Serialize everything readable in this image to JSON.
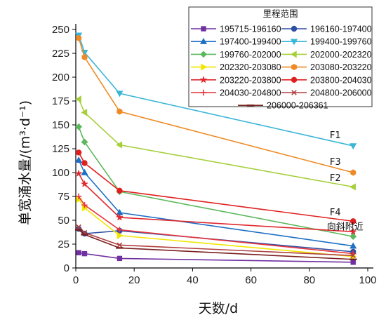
{
  "chart_data": {
    "type": "line",
    "xlabel": "天数/d",
    "ylabel": "单宽涌水量/(m³·d⁻¹)",
    "xlim": [
      0,
      100
    ],
    "ylim": [
      0,
      250
    ],
    "xticks": [
      "0",
      "20",
      "40",
      "60",
      "80",
      "100"
    ],
    "yticks": [
      "0",
      "25",
      "50",
      "75",
      "100",
      "125",
      "150",
      "175",
      "200",
      "225",
      "250"
    ],
    "grid": false,
    "legend_title": "里程范围",
    "legend_position": "top-right",
    "series": [
      {
        "name": "195715-196160",
        "color": "#7030a0",
        "marker": "square",
        "x": [
          1,
          3,
          15,
          95
        ],
        "y": [
          16,
          15,
          10,
          6
        ]
      },
      {
        "name": "196160-197400",
        "color": "#2e4fa3",
        "marker": "circle",
        "x": [
          1,
          3,
          15,
          95
        ],
        "y": [
          41,
          36,
          39,
          17
        ]
      },
      {
        "name": "197400-199400",
        "color": "#1f6fc5",
        "marker": "triangle",
        "x": [
          1,
          3,
          15,
          95
        ],
        "y": [
          113,
          100,
          58,
          23
        ]
      },
      {
        "name": "199400-199760",
        "color": "#3bb6d6",
        "marker": "tri-down",
        "x": [
          1,
          3,
          15,
          95
        ],
        "y": [
          244,
          226,
          183,
          128
        ]
      },
      {
        "name": "199760-202000",
        "color": "#5cb85c",
        "marker": "diamond",
        "x": [
          1,
          3,
          15,
          95
        ],
        "y": [
          148,
          132,
          80,
          33
        ]
      },
      {
        "name": "202000-202320",
        "color": "#a6cf3c",
        "marker": "tri-left",
        "x": [
          1,
          3,
          15,
          95
        ],
        "y": [
          177,
          163,
          129,
          85
        ]
      },
      {
        "name": "202320-203080",
        "color": "#f2e600",
        "marker": "tri-right",
        "x": [
          1,
          3,
          15,
          95
        ],
        "y": [
          72,
          63,
          34,
          12
        ]
      },
      {
        "name": "203080-203220",
        "color": "#ee8a25",
        "marker": "hexagon",
        "x": [
          1,
          3,
          15,
          95
        ],
        "y": [
          241,
          221,
          164,
          100
        ]
      },
      {
        "name": "203220-203800",
        "color": "#e0282e",
        "marker": "star",
        "x": [
          1,
          3,
          15,
          95
        ],
        "y": [
          99,
          88,
          53,
          38
        ]
      },
      {
        "name": "203800-204030",
        "color": "#e02020",
        "marker": "circle",
        "x": [
          1,
          3,
          15,
          95
        ],
        "y": [
          121,
          110,
          81,
          49
        ]
      },
      {
        "name": "204030-204800",
        "color": "#e8343c",
        "marker": "plus",
        "x": [
          1,
          3,
          15,
          95
        ],
        "y": [
          75,
          66,
          40,
          15
        ]
      },
      {
        "name": "204800-206000",
        "color": "#b04040",
        "marker": "x",
        "x": [
          1,
          3,
          15,
          95
        ],
        "y": [
          43,
          37,
          24,
          13
        ]
      },
      {
        "name": "206000-206361",
        "color": "#7a1f1f",
        "marker": "dash",
        "x": [
          1,
          3,
          15,
          95
        ],
        "y": [
          40,
          35,
          21,
          9
        ]
      }
    ],
    "annotations": [
      {
        "text": "F1",
        "x": 87,
        "y": 136
      },
      {
        "text": "F3",
        "x": 87,
        "y": 108
      },
      {
        "text": "F2",
        "x": 87,
        "y": 91
      },
      {
        "text": "F4",
        "x": 87,
        "y": 55
      },
      {
        "text": "向斜附近",
        "x": 86,
        "y": 40
      }
    ]
  }
}
